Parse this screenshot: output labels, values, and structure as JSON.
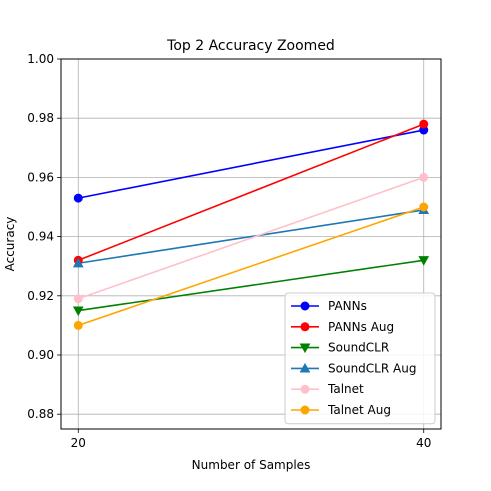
{
  "chart_data": {
    "type": "line",
    "title": "Top 2 Accuracy Zoomed",
    "xlabel": "Number of Samples",
    "ylabel": "Accuracy",
    "x": [
      20,
      40
    ],
    "x_ticks": [
      "20",
      "40"
    ],
    "xlim": [
      19.0,
      41.0
    ],
    "ylim": [
      0.875,
      1.0
    ],
    "y_ticks": [
      "0.88",
      "0.90",
      "0.92",
      "0.94",
      "0.96",
      "0.98",
      "1.00"
    ],
    "y_tick_values": [
      0.88,
      0.9,
      0.92,
      0.94,
      0.96,
      0.98,
      1.0
    ],
    "grid": true,
    "legend_position": "lower-right",
    "series": [
      {
        "name": "PANNs",
        "values": [
          0.953,
          0.976
        ],
        "color": "#0000ff",
        "marker": "circle"
      },
      {
        "name": "PANNs Aug",
        "values": [
          0.932,
          0.978
        ],
        "color": "#ff0000",
        "marker": "circle"
      },
      {
        "name": "SoundCLR",
        "values": [
          0.915,
          0.932
        ],
        "color": "#008000",
        "marker": "triangle-down"
      },
      {
        "name": "SoundCLR Aug",
        "values": [
          0.931,
          0.949
        ],
        "color": "#1f77b4",
        "marker": "triangle-up"
      },
      {
        "name": "Talnet",
        "values": [
          0.919,
          0.96
        ],
        "color": "#ffc0cb",
        "marker": "circle"
      },
      {
        "name": "Talnet Aug",
        "values": [
          0.91,
          0.95
        ],
        "color": "#ffa500",
        "marker": "circle"
      }
    ]
  }
}
